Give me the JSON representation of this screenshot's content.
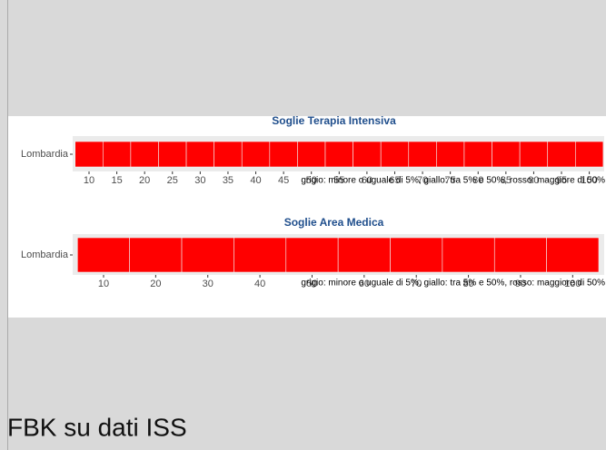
{
  "chart_data": [
    {
      "type": "tile",
      "title": "Soglie Terapia Intensiva",
      "categories": [
        "Lombardia"
      ],
      "x": [
        10,
        15,
        20,
        25,
        30,
        35,
        40,
        45,
        50,
        55,
        60,
        65,
        70,
        75,
        80,
        85,
        90,
        95,
        100
      ],
      "color": "#ff0000",
      "xlim": [
        7.5,
        102.5
      ],
      "xticks": [
        10,
        15,
        20,
        25,
        30,
        35,
        40,
        45,
        50,
        55,
        60,
        65,
        70,
        75,
        80,
        85,
        90,
        95,
        100
      ],
      "caption": "grigio: minore o uguale di 5%, giallo: tra 5% e 50%, rosso: maggiore di 50%"
    },
    {
      "type": "tile",
      "title": "Soglie Area Medica",
      "categories": [
        "Lombardia"
      ],
      "x": [
        10,
        20,
        30,
        40,
        50,
        60,
        70,
        80,
        90,
        100
      ],
      "color": "#ff0000",
      "xlim": [
        5,
        105
      ],
      "xticks": [
        10,
        20,
        30,
        40,
        50,
        60,
        70,
        80,
        90,
        100
      ],
      "caption": "grigio: minore o uguale di 5%, giallo: tra 5% e 50%, rosso: maggiore di 50%"
    }
  ],
  "footer": "FBK su dati ISS"
}
